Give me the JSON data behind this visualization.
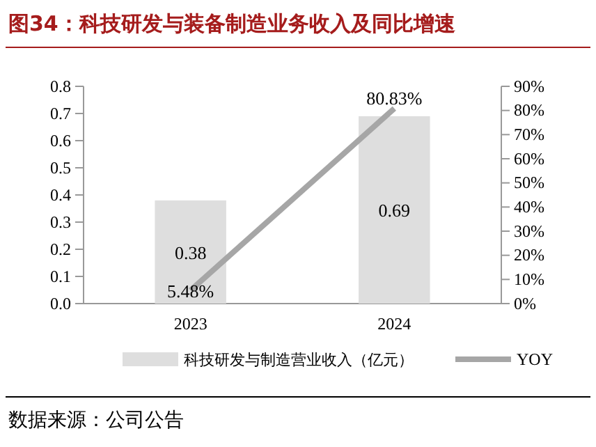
{
  "chart_data": {
    "type": "bar",
    "title": "图34：科技研发与装备制造业务收入及同比增速",
    "annotations": [
      "数据来源：公司公告"
    ],
    "categories": [
      "2023",
      "2024"
    ],
    "series": [
      {
        "name": "科技研发与制造营业收入（亿元）",
        "color": "#dedede",
        "values": [
          0.38,
          0.69
        ],
        "axis": "y",
        "value_labels": [
          "0.38",
          "0.69"
        ]
      },
      {
        "type": "line",
        "name": "YOY",
        "color": "#a6a6a6",
        "values": [
          5.48,
          80.83
        ],
        "axis": "y2",
        "value_labels": [
          "5.48%",
          "80.83%"
        ]
      }
    ],
    "ylim": [
      0,
      0.8
    ],
    "yticks": [
      {
        "value": 0,
        "label": "0.0"
      },
      0.1,
      0.2,
      0.3,
      0.4,
      0.5,
      0.6,
      0.7,
      0.8
    ],
    "y2lim": [
      0,
      90
    ],
    "y2ticks": [
      {
        "value": 0,
        "label": "0%"
      },
      {
        "value": 10,
        "label": "10%"
      },
      {
        "value": 20,
        "label": "20%"
      },
      {
        "value": 30,
        "label": "30%"
      },
      {
        "value": 40,
        "label": "40%"
      },
      {
        "value": 50,
        "label": "50%"
      },
      {
        "value": 60,
        "label": "60%"
      },
      {
        "value": 70,
        "label": "70%"
      },
      {
        "value": 80,
        "label": "80%"
      },
      {
        "value": 90,
        "label": "90%"
      }
    ],
    "legend": "bottom"
  }
}
